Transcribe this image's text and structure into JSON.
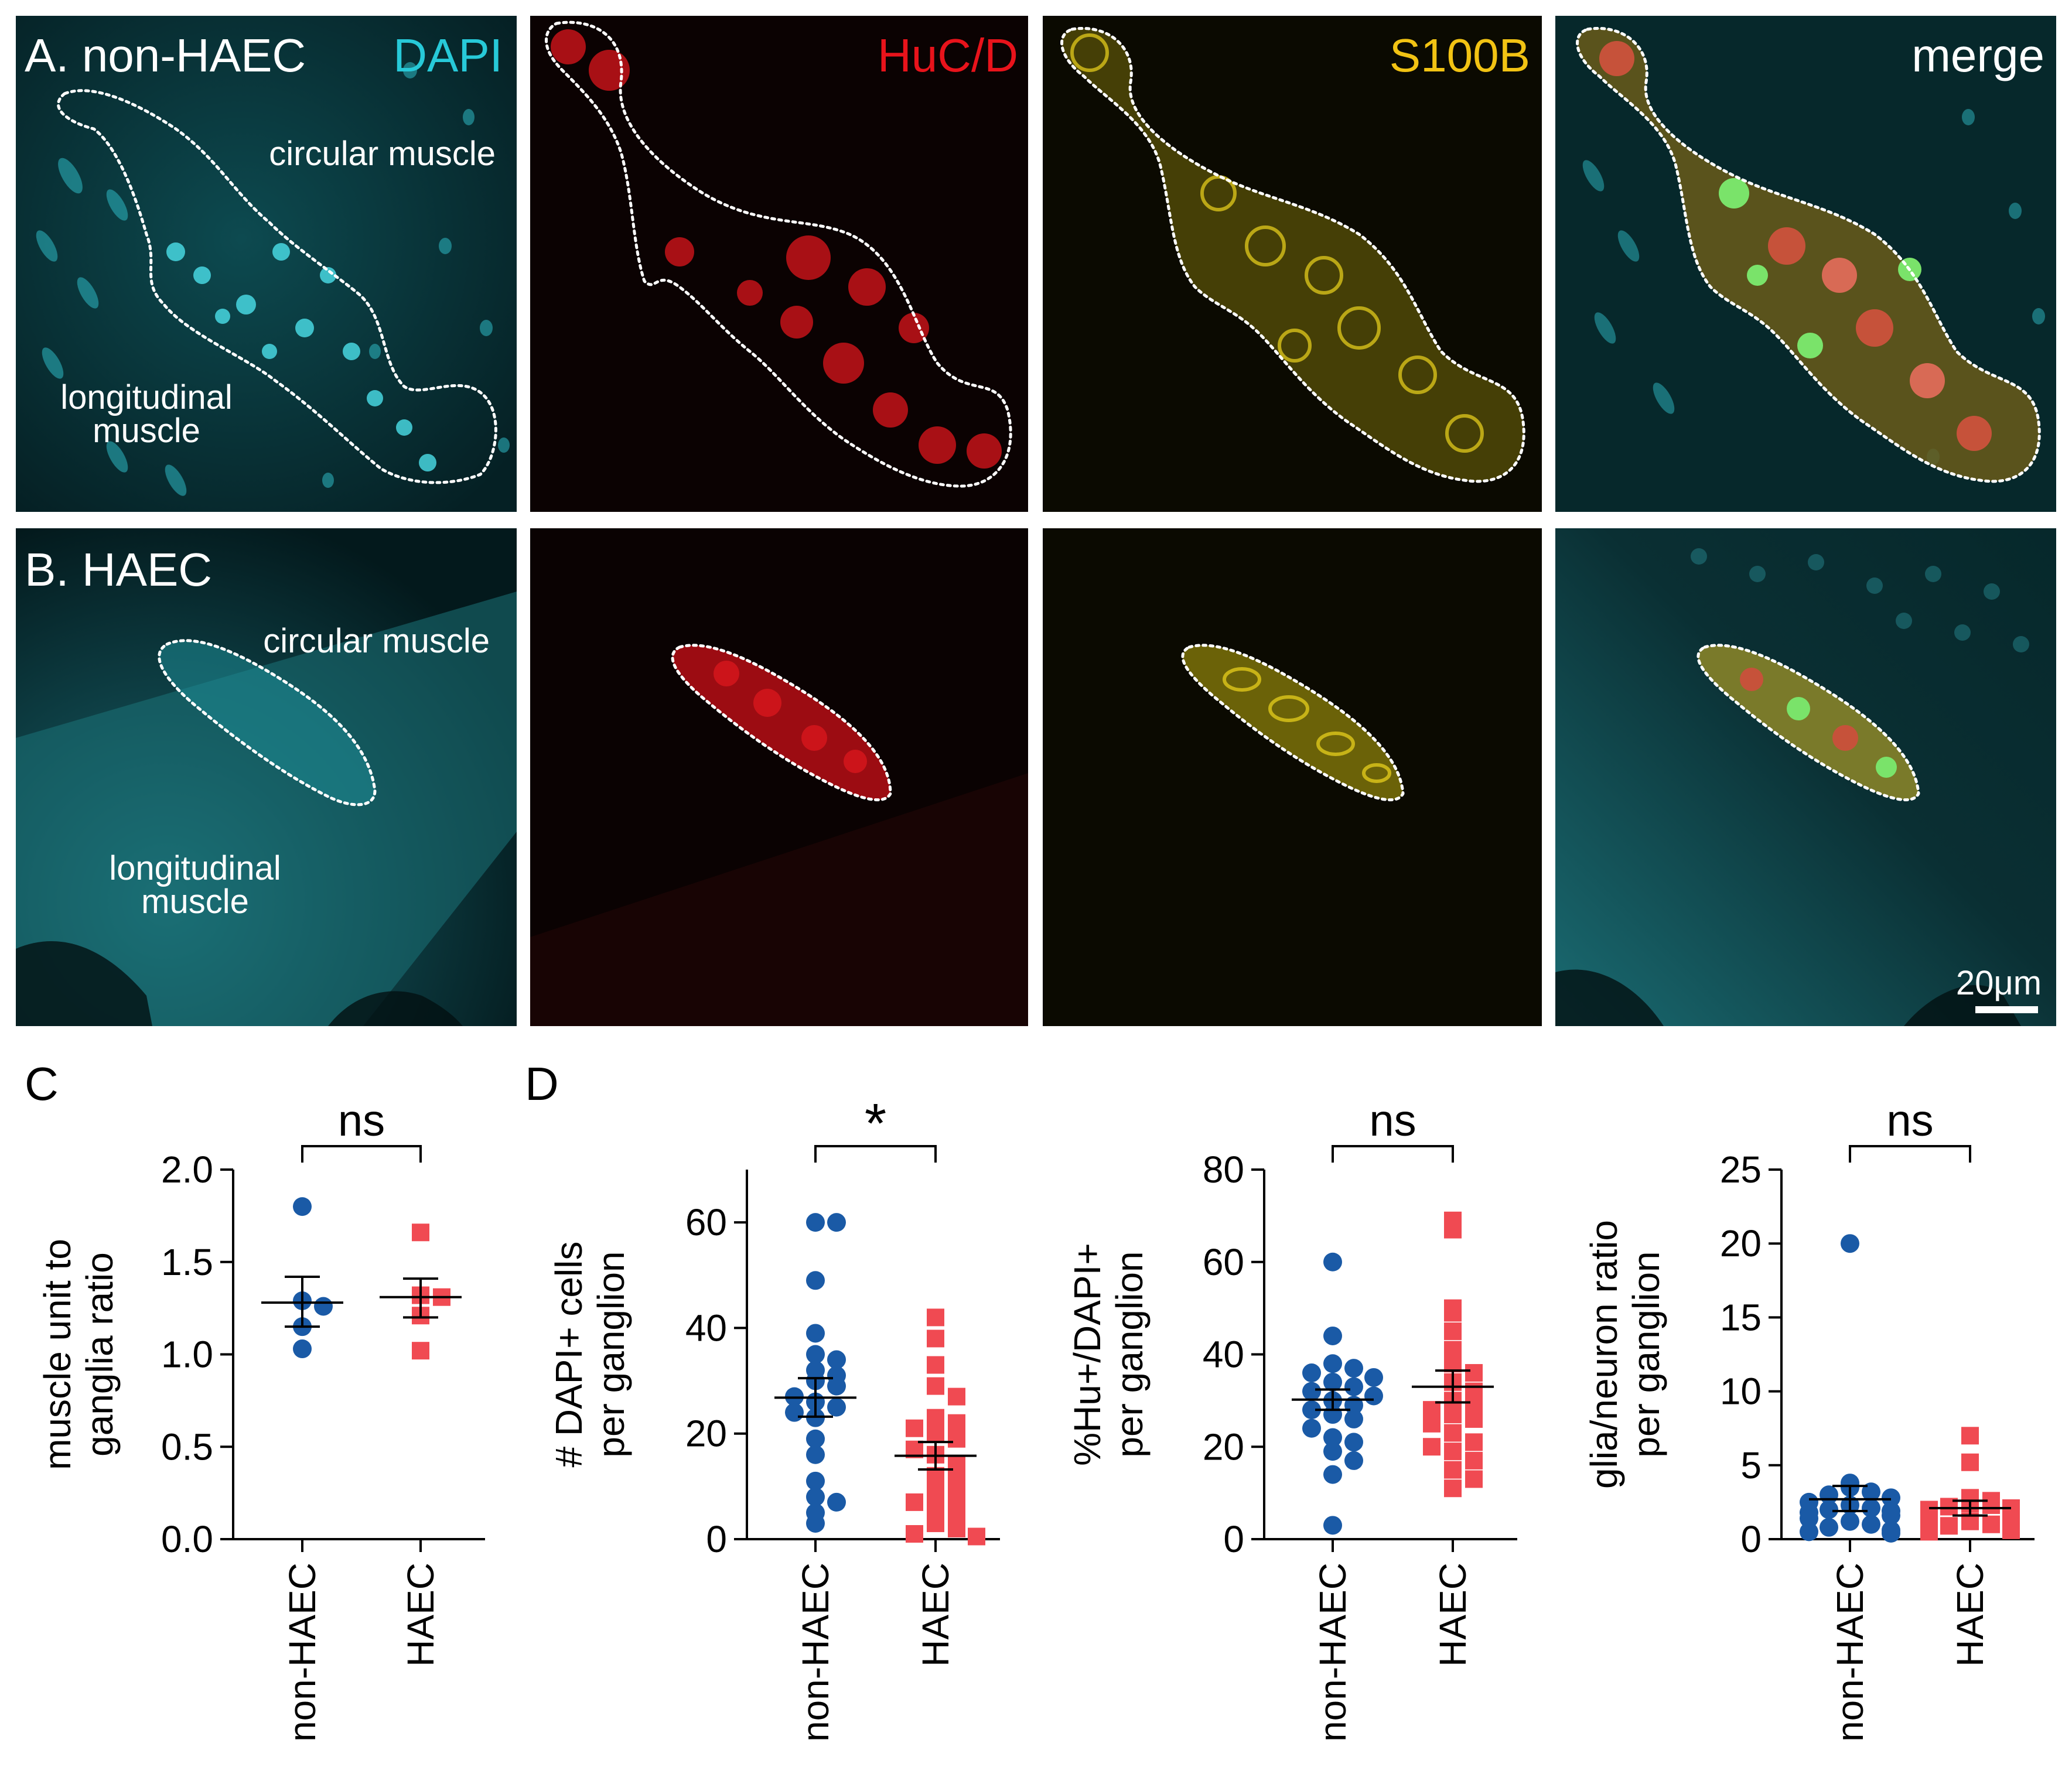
{
  "figure": {
    "panel_A": {
      "row_label": "A. non-HAEC",
      "channels": [
        "DAPI",
        "HuC/D",
        "S100B",
        "merge"
      ],
      "annotations": {
        "circular": "circular muscle",
        "longitudinal_1": "longitudinal",
        "longitudinal_2": "muscle"
      }
    },
    "panel_B": {
      "row_label": "B. HAEC",
      "annotations": {
        "circular": "circular muscle",
        "longitudinal_1": "longitudinal",
        "longitudinal_2": "muscle"
      },
      "scale_bar": "20μm"
    },
    "panel_C_label": "C",
    "panel_D_label": "D",
    "colors": {
      "non_haec": "#1a5aa6",
      "haec": "#f04a52",
      "dapi": "#27c9d8",
      "huc": "#e8131b",
      "s100b": "#f2c313"
    }
  },
  "chart_data": [
    {
      "id": "C",
      "type": "scatter",
      "title": "",
      "ylabel_lines": [
        "muscle unit to",
        "ganglia ratio"
      ],
      "categories": [
        "non-HAEC",
        "HAEC"
      ],
      "ylim": [
        0,
        2.0
      ],
      "yticks": [
        "0.0",
        "0.5",
        "1.0",
        "1.5",
        "2.0"
      ],
      "series": [
        {
          "name": "non-HAEC",
          "values": [
            1.8,
            1.29,
            1.26,
            1.15,
            1.03
          ],
          "mean": 1.28,
          "sem_upper": 1.42,
          "sem_lower": 1.15
        },
        {
          "name": "HAEC",
          "values": [
            1.66,
            1.32,
            1.31,
            1.21,
            1.02
          ],
          "mean": 1.31,
          "sem_upper": 1.41,
          "sem_lower": 1.2
        }
      ],
      "significance": "ns"
    },
    {
      "id": "D1",
      "type": "scatter",
      "title": "",
      "ylabel_lines": [
        "# DAPI+ cells",
        "per ganglion"
      ],
      "categories": [
        "non-HAEC",
        "HAEC"
      ],
      "ylim": [
        0,
        70
      ],
      "yticks": [
        "0",
        "20",
        "40",
        "60"
      ],
      "series": [
        {
          "name": "non-HAEC",
          "values": [
            60,
            60,
            49,
            39,
            35,
            34,
            32,
            31,
            30,
            29,
            27,
            26,
            25,
            24,
            23,
            19,
            16,
            11,
            8,
            7,
            5,
            3
          ],
          "mean": 26.8,
          "sem_upper": 30.5,
          "sem_lower": 23.2
        },
        {
          "name": "HAEC",
          "values": [
            42,
            38,
            33,
            29,
            27,
            23,
            22,
            21,
            20,
            19,
            17,
            16,
            14,
            12,
            11,
            9,
            8,
            7,
            6,
            5,
            3,
            2,
            1,
            0.5
          ],
          "mean": 15.8,
          "sem_upper": 18.4,
          "sem_lower": 13.2
        }
      ],
      "significance": "*"
    },
    {
      "id": "D2",
      "type": "scatter",
      "title": "",
      "ylabel_lines": [
        "%Hu+/DAPI+",
        "per ganglion"
      ],
      "categories": [
        "non-HAEC",
        "HAEC"
      ],
      "ylim": [
        0,
        80
      ],
      "yticks": [
        "0",
        "20",
        "40",
        "60",
        "80"
      ],
      "series": [
        {
          "name": "non-HAEC",
          "values": [
            60,
            44,
            38,
            37,
            36,
            35,
            34,
            33,
            32,
            31,
            30,
            29,
            28,
            27,
            26,
            24,
            22,
            21,
            19,
            17,
            14,
            3
          ],
          "mean": 30.2,
          "sem_upper": 32.4,
          "sem_lower": 28.0
        },
        {
          "name": "HAEC",
          "values": [
            69,
            67,
            50,
            49,
            45,
            41,
            38,
            36,
            34,
            32,
            30,
            29,
            28,
            27,
            26,
            25,
            23,
            21,
            20,
            19,
            17,
            15,
            13,
            11
          ],
          "mean": 33.0,
          "sem_upper": 36.5,
          "sem_lower": 29.6
        }
      ],
      "significance": "ns"
    },
    {
      "id": "D3",
      "type": "scatter",
      "title": "",
      "ylabel_lines": [
        "glia/neuron ratio",
        "per ganglion"
      ],
      "categories": [
        "non-HAEC",
        "HAEC"
      ],
      "ylim": [
        0,
        25
      ],
      "yticks": [
        "0",
        "5",
        "10",
        "15",
        "20",
        "25"
      ],
      "series": [
        {
          "name": "non-HAEC",
          "values": [
            20,
            3.8,
            3.5,
            3.2,
            3.0,
            2.8,
            2.5,
            2.3,
            2.1,
            2.0,
            1.9,
            1.8,
            1.6,
            1.4,
            1.2,
            1.0,
            0.8,
            0.6,
            0.5,
            0.4
          ],
          "mean": 2.7,
          "sem_upper": 3.6,
          "sem_lower": 1.9
        },
        {
          "name": "HAEC",
          "values": [
            7.0,
            5.2,
            2.8,
            2.6,
            2.4,
            2.3,
            2.2,
            2.1,
            2.0,
            1.9,
            1.8,
            1.7,
            1.6,
            1.5,
            1.4,
            1.2,
            1.0,
            0.9,
            0.8,
            0.7,
            0.6,
            0.5
          ],
          "mean": 2.1,
          "sem_upper": 2.6,
          "sem_lower": 1.6
        }
      ],
      "significance": "ns"
    }
  ]
}
